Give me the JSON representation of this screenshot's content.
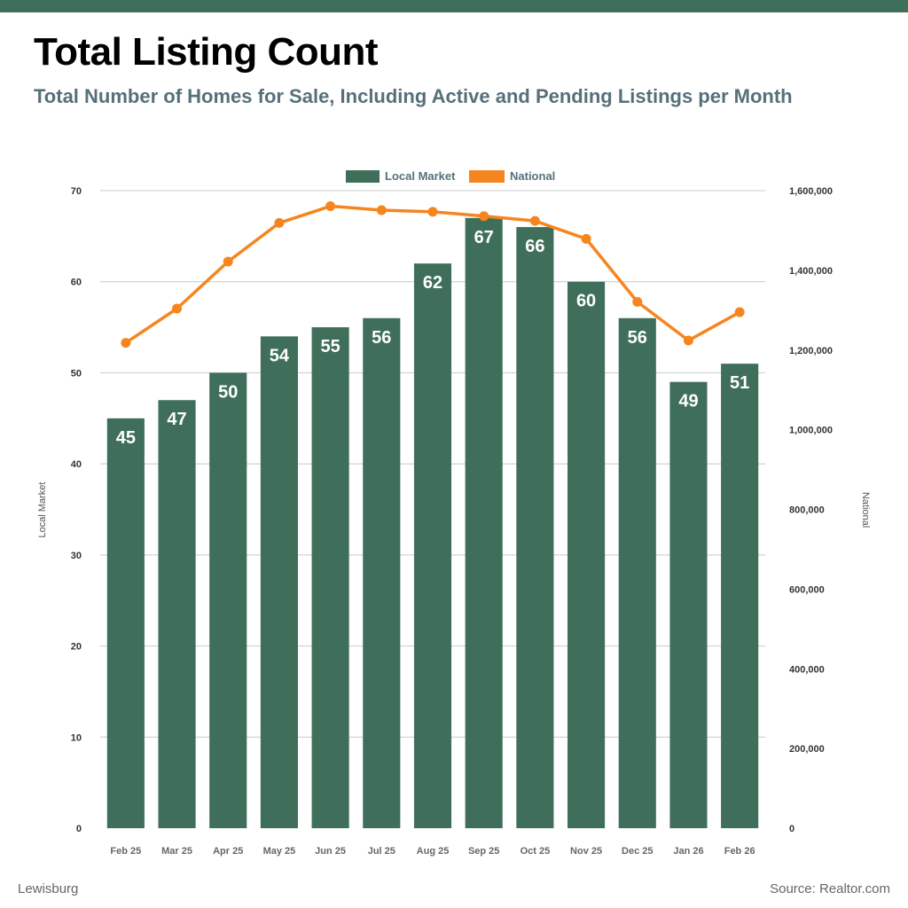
{
  "header": {
    "title": "Total Listing Count",
    "subtitle": "Total Number of Homes for Sale, Including Active and Pending Listings per Month"
  },
  "footer": {
    "location": "Lewisburg",
    "source": "Source: Realtor.com"
  },
  "colors": {
    "local": "#3f6f5a",
    "national": "#f5861f",
    "grid": "#c8c8c8",
    "axis_text": "#333333",
    "tick_text": "#666666"
  },
  "chart_data": {
    "type": "bar",
    "title": "Total Listing Count",
    "categories": [
      "Feb 25",
      "Mar 25",
      "Apr 25",
      "May 25",
      "Jun 25",
      "Jul 25",
      "Aug 25",
      "Sep 25",
      "Oct 25",
      "Nov 25",
      "Dec 25",
      "Jan 26",
      "Feb 26"
    ],
    "series": [
      {
        "name": "Local Market",
        "type": "bar",
        "axis": "left",
        "values": [
          45,
          47,
          50,
          54,
          55,
          56,
          62,
          67,
          66,
          60,
          56,
          49,
          51
        ]
      },
      {
        "name": "National",
        "type": "line",
        "axis": "right",
        "values": [
          1218000,
          1304000,
          1422000,
          1519000,
          1561000,
          1551000,
          1547000,
          1536000,
          1524000,
          1479000,
          1321000,
          1224000,
          1295000
        ]
      }
    ],
    "ylabel": "Local Market",
    "ylabel_right": "National",
    "ylim": [
      0,
      70
    ],
    "yticks": [
      "0",
      "10",
      "20",
      "30",
      "40",
      "50",
      "60",
      "70"
    ],
    "ylim_right": [
      0,
      1600000
    ],
    "yticks_right": [
      "0",
      "200,000",
      "400,000",
      "600,000",
      "800,000",
      "1,000,000",
      "1,200,000",
      "1,400,000",
      "1,600,000"
    ],
    "legend_position": "top-center",
    "grid": true
  }
}
